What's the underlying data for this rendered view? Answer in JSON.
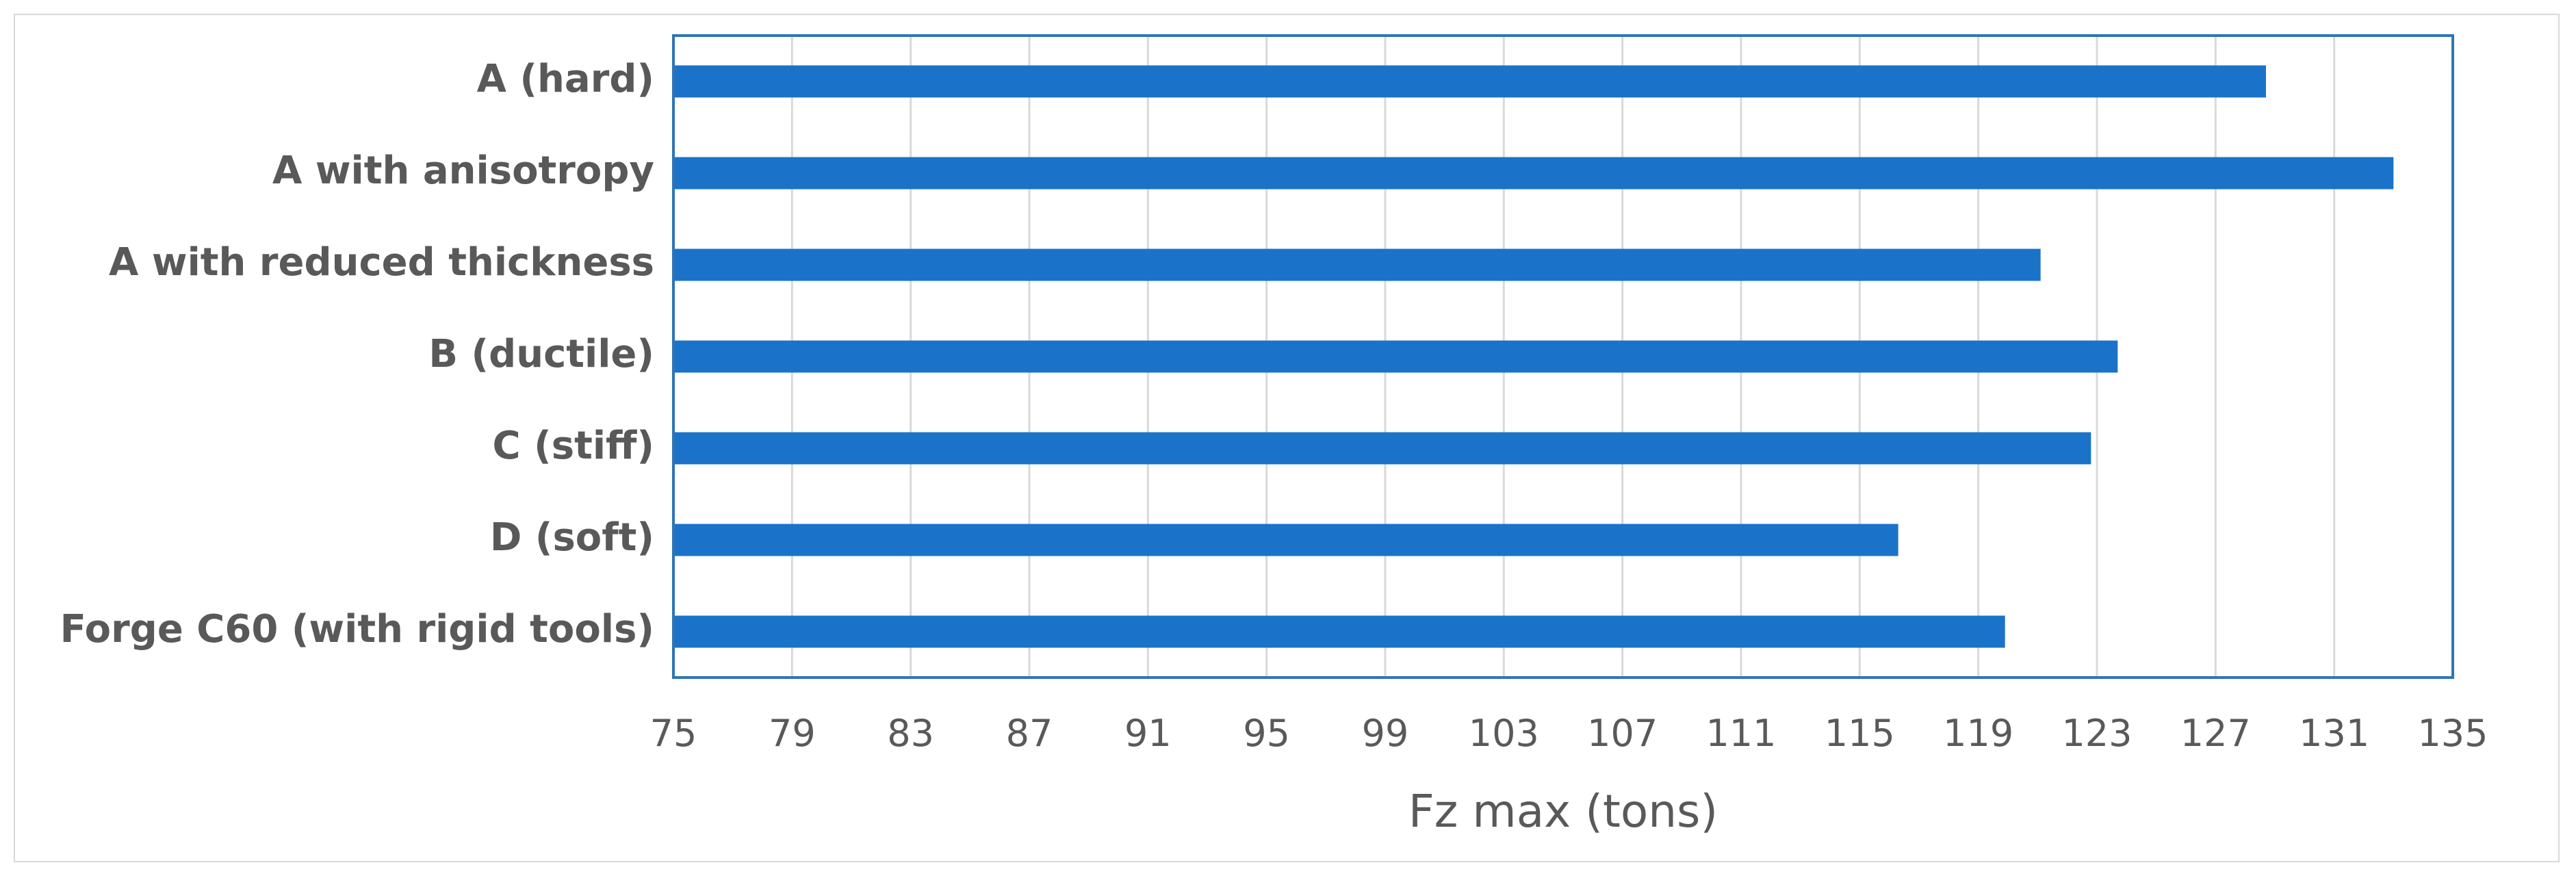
{
  "chart_data": {
    "type": "bar",
    "orientation": "horizontal",
    "categories": [
      "A (hard)",
      "A with anisotropy",
      "A with reduced thickness",
      "B (ductile)",
      "C (stiff)",
      "D (soft)",
      "Forge C60 (with rigid tools)"
    ],
    "values": [
      128.7,
      133.0,
      121.1,
      123.7,
      122.8,
      116.3,
      119.9
    ],
    "xlabel": "Fz max (tons)",
    "ylabel": "",
    "title": "",
    "xlim": [
      75,
      135
    ],
    "xticks": [
      "75",
      "79",
      "83",
      "87",
      "91",
      "95",
      "99",
      "103",
      "107",
      "111",
      "115",
      "119",
      "123",
      "127",
      "131",
      "135"
    ],
    "grid": "vertical",
    "legend": "none",
    "bar_color": "#1a73c8",
    "plot_border_color": "#2e75b6",
    "grid_color": "#d9d9d9",
    "text_color": "#595959"
  }
}
